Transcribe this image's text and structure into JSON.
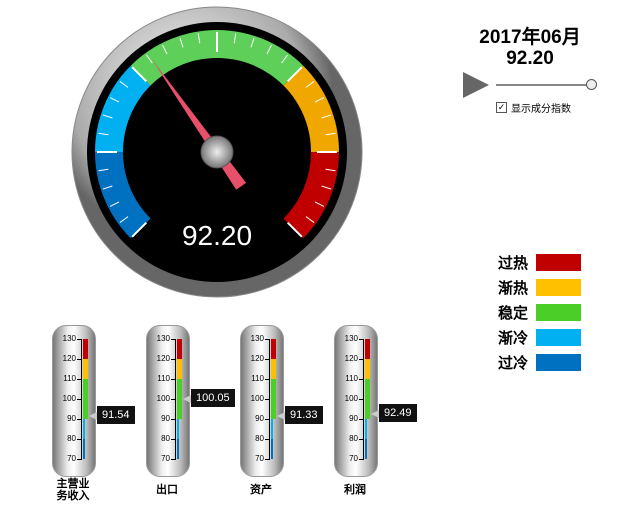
{
  "header": {
    "period": "2017年06月",
    "value": "92.20"
  },
  "controls": {
    "play_icon": "play-icon",
    "slider_position": 1.0,
    "checkbox_label": "显示成分指数",
    "checkbox_checked": true
  },
  "main_gauge": {
    "value": 92.2,
    "display": "92.20",
    "min": 70,
    "max": 130,
    "bands": [
      {
        "from": 70,
        "to": 80,
        "color": "#0070c0"
      },
      {
        "from": 80,
        "to": 90,
        "color": "#00b0f0"
      },
      {
        "from": 90,
        "to": 110,
        "color": "#5ed05a"
      },
      {
        "from": 110,
        "to": 120,
        "color": "#f0a800"
      },
      {
        "from": 120,
        "to": 130,
        "color": "#c00000"
      }
    ]
  },
  "legend": [
    {
      "label": "过热",
      "color": "#c00000"
    },
    {
      "label": "渐热",
      "color": "#ffc000"
    },
    {
      "label": "稳定",
      "color": "#4cce28"
    },
    {
      "label": "渐冷",
      "color": "#00b0f0"
    },
    {
      "label": "过冷",
      "color": "#0070c0"
    }
  ],
  "thermometers": {
    "ticks": [
      "130",
      "120",
      "110",
      "100",
      "90",
      "80",
      "70"
    ],
    "items": [
      {
        "label": "主营业务收入",
        "value": 91.54,
        "display": "91.54"
      },
      {
        "label": "出口",
        "value": 100.05,
        "display": "100.05"
      },
      {
        "label": "资产",
        "value": 91.33,
        "display": "91.33"
      },
      {
        "label": "利润",
        "value": 92.49,
        "display": "92.49"
      }
    ]
  }
}
